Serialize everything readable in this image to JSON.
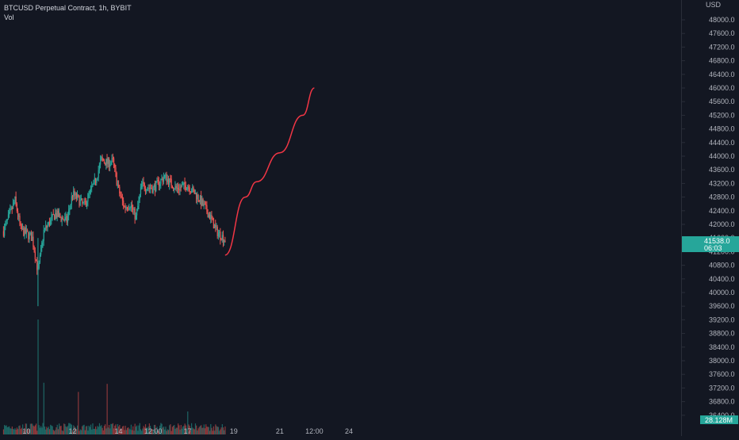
{
  "header": {
    "symbol_title": "BTCUSD Perpetual Contract, 1h, BYBIT",
    "volume_label": "Vol"
  },
  "colors": {
    "background": "#131722",
    "up": "#26a69a",
    "down": "#ef5350",
    "text": "#b2b5be",
    "projection": "#f23645"
  },
  "chart_data": {
    "type": "candlestick",
    "symbol": "BTCUSD Perpetual Contract",
    "interval": "1h",
    "exchange": "BYBIT",
    "y_axis": {
      "currency": "USD",
      "range": [
        36040,
        48700
      ],
      "ticks": [
        "48000.0",
        "47600.0",
        "47200.0",
        "46800.0",
        "46400.0",
        "46000.0",
        "45600.0",
        "45200.0",
        "44800.0",
        "44400.0",
        "44000.0",
        "43600.0",
        "43200.0",
        "42800.0",
        "42400.0",
        "42000.0",
        "41600.0",
        "41200.0",
        "40800.0",
        "40400.0",
        "40000.0",
        "39600.0",
        "39200.0",
        "38800.0",
        "38400.0",
        "38000.0",
        "37600.0",
        "37200.0",
        "36800.0",
        "36400.0"
      ]
    },
    "x_axis": {
      "ticks": [
        "10",
        "12",
        "14",
        "12:00",
        "17",
        "19",
        "21",
        "12:00",
        "24"
      ]
    },
    "price_points": [
      {
        "x": "Jan 9 00:00",
        "y": 41800
      },
      {
        "x": "Jan 9 12:00",
        "y": 42700
      },
      {
        "x": "Jan 9 18:00",
        "y": 41850
      },
      {
        "x": "Jan 10 06:00",
        "y": 41600
      },
      {
        "x": "Jan 10 12:00",
        "y": 40600
      },
      {
        "x": "Jan 10 18:00",
        "y": 41800
      },
      {
        "x": "Jan 11 06:00",
        "y": 42300
      },
      {
        "x": "Jan 11 18:00",
        "y": 42100
      },
      {
        "x": "Jan 12 00:00",
        "y": 42900
      },
      {
        "x": "Jan 12 12:00",
        "y": 42550
      },
      {
        "x": "Jan 13 00:00",
        "y": 43300
      },
      {
        "x": "Jan 13 06:00",
        "y": 43900
      },
      {
        "x": "Jan 13 12:00",
        "y": 43800
      },
      {
        "x": "Jan 13 18:00",
        "y": 43850
      },
      {
        "x": "Jan 14 00:00",
        "y": 43000
      },
      {
        "x": "Jan 14 06:00",
        "y": 42500
      },
      {
        "x": "Jan 14 12:00",
        "y": 42600
      },
      {
        "x": "Jan 14 18:00",
        "y": 42200
      },
      {
        "x": "Jan 15 00:00",
        "y": 43150
      },
      {
        "x": "Jan 15 12:00",
        "y": 43050
      },
      {
        "x": "Jan 16 00:00",
        "y": 43400
      },
      {
        "x": "Jan 16 12:00",
        "y": 43050
      },
      {
        "x": "Jan 17 00:00",
        "y": 43150
      },
      {
        "x": "Jan 17 12:00",
        "y": 42750
      },
      {
        "x": "Jan 18 00:00",
        "y": 42200
      },
      {
        "x": "Jan 18 06:00",
        "y": 41800
      },
      {
        "x": "Jan 18 12:00",
        "y": 41640
      },
      {
        "x": "Jan 18 15:00",
        "y": 41538
      }
    ],
    "volume_spikes": [
      {
        "x": "Jan 10 12:00",
        "relative": 1.0
      },
      {
        "x": "Jan 10 18:00",
        "relative": 0.45
      },
      {
        "x": "Jan 13 12:00",
        "relative": 0.44
      },
      {
        "x": "Jan 12 06:00",
        "relative": 0.37
      },
      {
        "x": "Jan 17 00:00",
        "relative": 0.2
      }
    ],
    "projection": {
      "color": "#f23645",
      "points": [
        {
          "x": "Jan 18 15:00",
          "y": 41100
        },
        {
          "x": "Jan 19 12:00",
          "y": 42800
        },
        {
          "x": "Jan 20 00:00",
          "y": 43250
        },
        {
          "x": "Jan 21 00:00",
          "y": 44100
        },
        {
          "x": "Jan 22 00:00",
          "y": 45200
        },
        {
          "x": "Jan 22 12:00",
          "y": 46000
        }
      ]
    },
    "last_price": {
      "value": "41538.0",
      "countdown": "06:03"
    },
    "last_volume": "28.128M",
    "legend": "top-left",
    "grid": false
  }
}
